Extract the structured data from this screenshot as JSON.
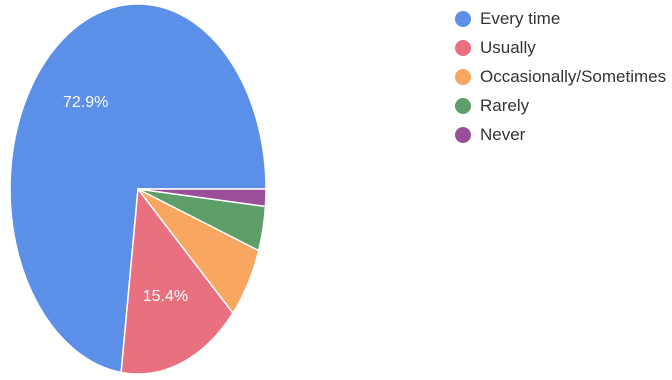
{
  "chart_data": {
    "type": "pie",
    "categories": [
      "Every time",
      "Usually",
      "Occasionally/Sometimes",
      "Rarely",
      "Never"
    ],
    "values": [
      72.9,
      15.4,
      6.3,
      3.9,
      1.5
    ],
    "colors": [
      "#5B8FE8",
      "#E8707F",
      "#F9A660",
      "#5E9E68",
      "#9A4F9B"
    ],
    "slice_labels": [
      "72.9%",
      "15.4%",
      "",
      "",
      ""
    ],
    "legend_position": "right"
  }
}
